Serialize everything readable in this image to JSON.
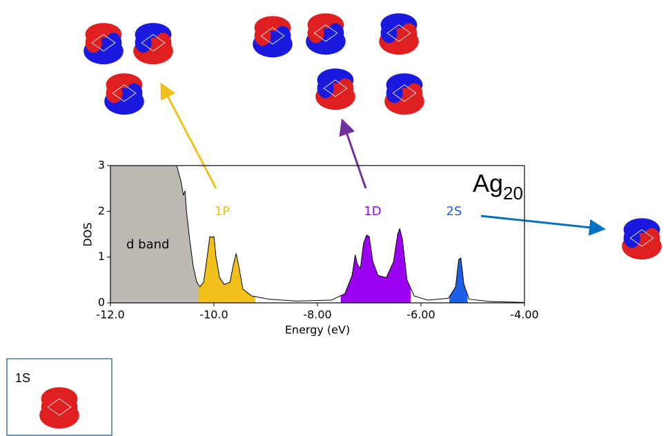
{
  "chart_data": {
    "type": "area",
    "xlabel": "Energy (eV)",
    "ylabel": "DOS",
    "annotation": {
      "text": "Ag",
      "subscript": "20"
    },
    "inset_label": "1S",
    "x": [
      -12,
      -10.72,
      -10.64,
      -10.62,
      -10.59,
      -10.56,
      -10.53,
      -10.47,
      -10.4,
      -10.33,
      -10.27,
      -10.2,
      -10.13,
      -10.08,
      -10.04,
      -10.0,
      -9.96,
      -9.89,
      -9.8,
      -9.69,
      -9.63,
      -9.57,
      -9.52,
      -9.44,
      -9.27,
      -8.93,
      -8.4,
      -7.73,
      -7.47,
      -7.33,
      -7.27,
      -7.23,
      -7.17,
      -7.11,
      -7.05,
      -7.0,
      -6.93,
      -6.83,
      -6.67,
      -6.53,
      -6.45,
      -6.41,
      -6.36,
      -6.27,
      -6.13,
      -5.87,
      -5.47,
      -5.33,
      -5.27,
      -5.23,
      -5.17,
      -5.07,
      -4.67,
      -4.0
    ],
    "values": [
      3,
      3,
      2.67,
      2.55,
      2.35,
      2.45,
      2.0,
      1.4,
      0.8,
      0.45,
      0.35,
      0.45,
      1.0,
      1.45,
      1.43,
      1.45,
      1.0,
      0.55,
      0.4,
      0.45,
      0.8,
      1.08,
      0.8,
      0.3,
      0.15,
      0.08,
      0.04,
      0.06,
      0.2,
      0.6,
      1.05,
      0.85,
      0.75,
      1.3,
      1.48,
      1.45,
      0.9,
      0.6,
      0.55,
      0.9,
      1.5,
      1.62,
      1.4,
      0.5,
      0.15,
      0.06,
      0.1,
      0.35,
      0.95,
      0.98,
      0.4,
      0.08,
      0.03,
      0.01
    ],
    "line_color": "#000000",
    "bands": [
      {
        "name": "d band",
        "range": [
          -12,
          -10.3
        ],
        "color": "#bcb9b3",
        "label_color": "#000000"
      },
      {
        "name": "1P",
        "range": [
          -10.3,
          -9.2
        ],
        "color": "#f2c01a",
        "label_color": "#f2c01a"
      },
      {
        "name": "1D",
        "range": [
          -7.55,
          -6.2
        ],
        "color": "#9b00f0",
        "label_color": "#9b00f0"
      },
      {
        "name": "2S",
        "range": [
          -5.45,
          -5.1
        ],
        "color": "#1a5fe6",
        "label_color": "#1a5fe6"
      }
    ],
    "xlim": [
      -12,
      -4
    ],
    "ylim": [
      0,
      3
    ],
    "xticks": [
      {
        "value": -12,
        "label": "-12.0"
      },
      {
        "value": -10,
        "label": "-10.0"
      },
      {
        "value": -8,
        "label": "-8.00"
      },
      {
        "value": -6,
        "label": "-6.00"
      },
      {
        "value": -4,
        "label": "-4.00"
      }
    ],
    "yticks": [
      0,
      1,
      2,
      3
    ]
  }
}
